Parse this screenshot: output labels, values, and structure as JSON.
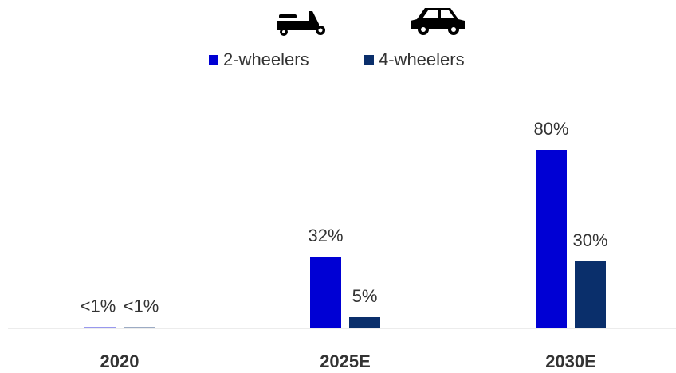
{
  "chart_data": {
    "type": "bar",
    "categories": [
      "2020",
      "2025E",
      "2030E"
    ],
    "series": [
      {
        "name": "2-wheelers",
        "color": "#0000d4",
        "values": [
          0.5,
          32,
          80
        ],
        "value_labels": [
          "<1%",
          "32%",
          "80%"
        ]
      },
      {
        "name": "4-wheelers",
        "color": "#0a2f6b",
        "values": [
          0.5,
          5,
          30
        ],
        "value_labels": [
          "<1%",
          "5%",
          "30%"
        ]
      }
    ]
  }
}
